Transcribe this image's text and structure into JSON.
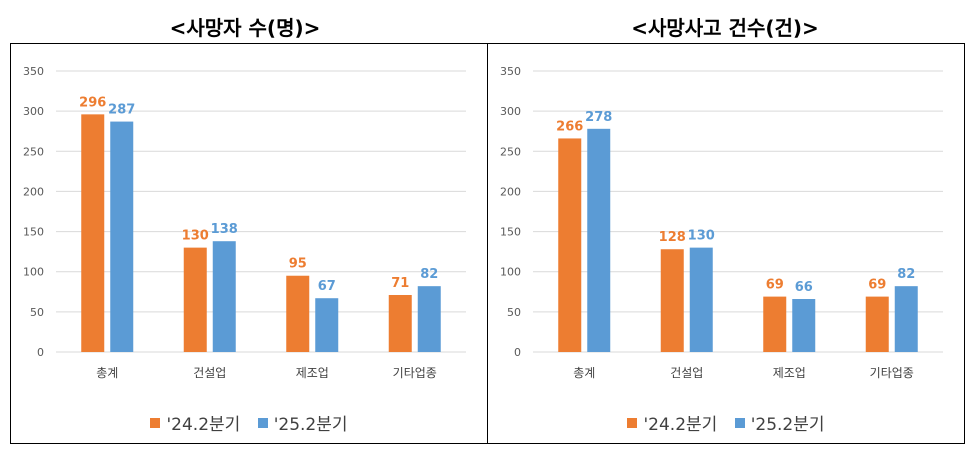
{
  "titles": {
    "left": "<사망자 수(명)>",
    "right": "<사망사고 건수(건)>"
  },
  "colors": {
    "series_2024": "#ED7D31",
    "series_2025": "#5B9BD5",
    "gridline": "#D9D9D9"
  },
  "legend": {
    "series_2024": "'24.2분기",
    "series_2025": "'25.2분기"
  },
  "chart_data": [
    {
      "type": "bar",
      "title": "<사망자 수(명)>",
      "categories": [
        "총계",
        "건설업",
        "제조업",
        "기타업종"
      ],
      "series": [
        {
          "name": "'24.2분기",
          "values": [
            296,
            130,
            95,
            71
          ]
        },
        {
          "name": "'25.2분기",
          "values": [
            287,
            138,
            67,
            82
          ]
        }
      ],
      "ylim": [
        0,
        350
      ],
      "yticks": [
        0,
        50,
        100,
        150,
        200,
        250,
        300,
        350
      ],
      "grid": true,
      "legend_position": "bottom"
    },
    {
      "type": "bar",
      "title": "<사망사고 건수(건)>",
      "categories": [
        "총계",
        "건설업",
        "제조업",
        "기타업종"
      ],
      "series": [
        {
          "name": "'24.2분기",
          "values": [
            266,
            128,
            69,
            69
          ]
        },
        {
          "name": "'25.2분기",
          "values": [
            278,
            130,
            66,
            82
          ]
        }
      ],
      "ylim": [
        0,
        350
      ],
      "yticks": [
        0,
        50,
        100,
        150,
        200,
        250,
        300,
        350
      ],
      "grid": true,
      "legend_position": "bottom"
    }
  ]
}
